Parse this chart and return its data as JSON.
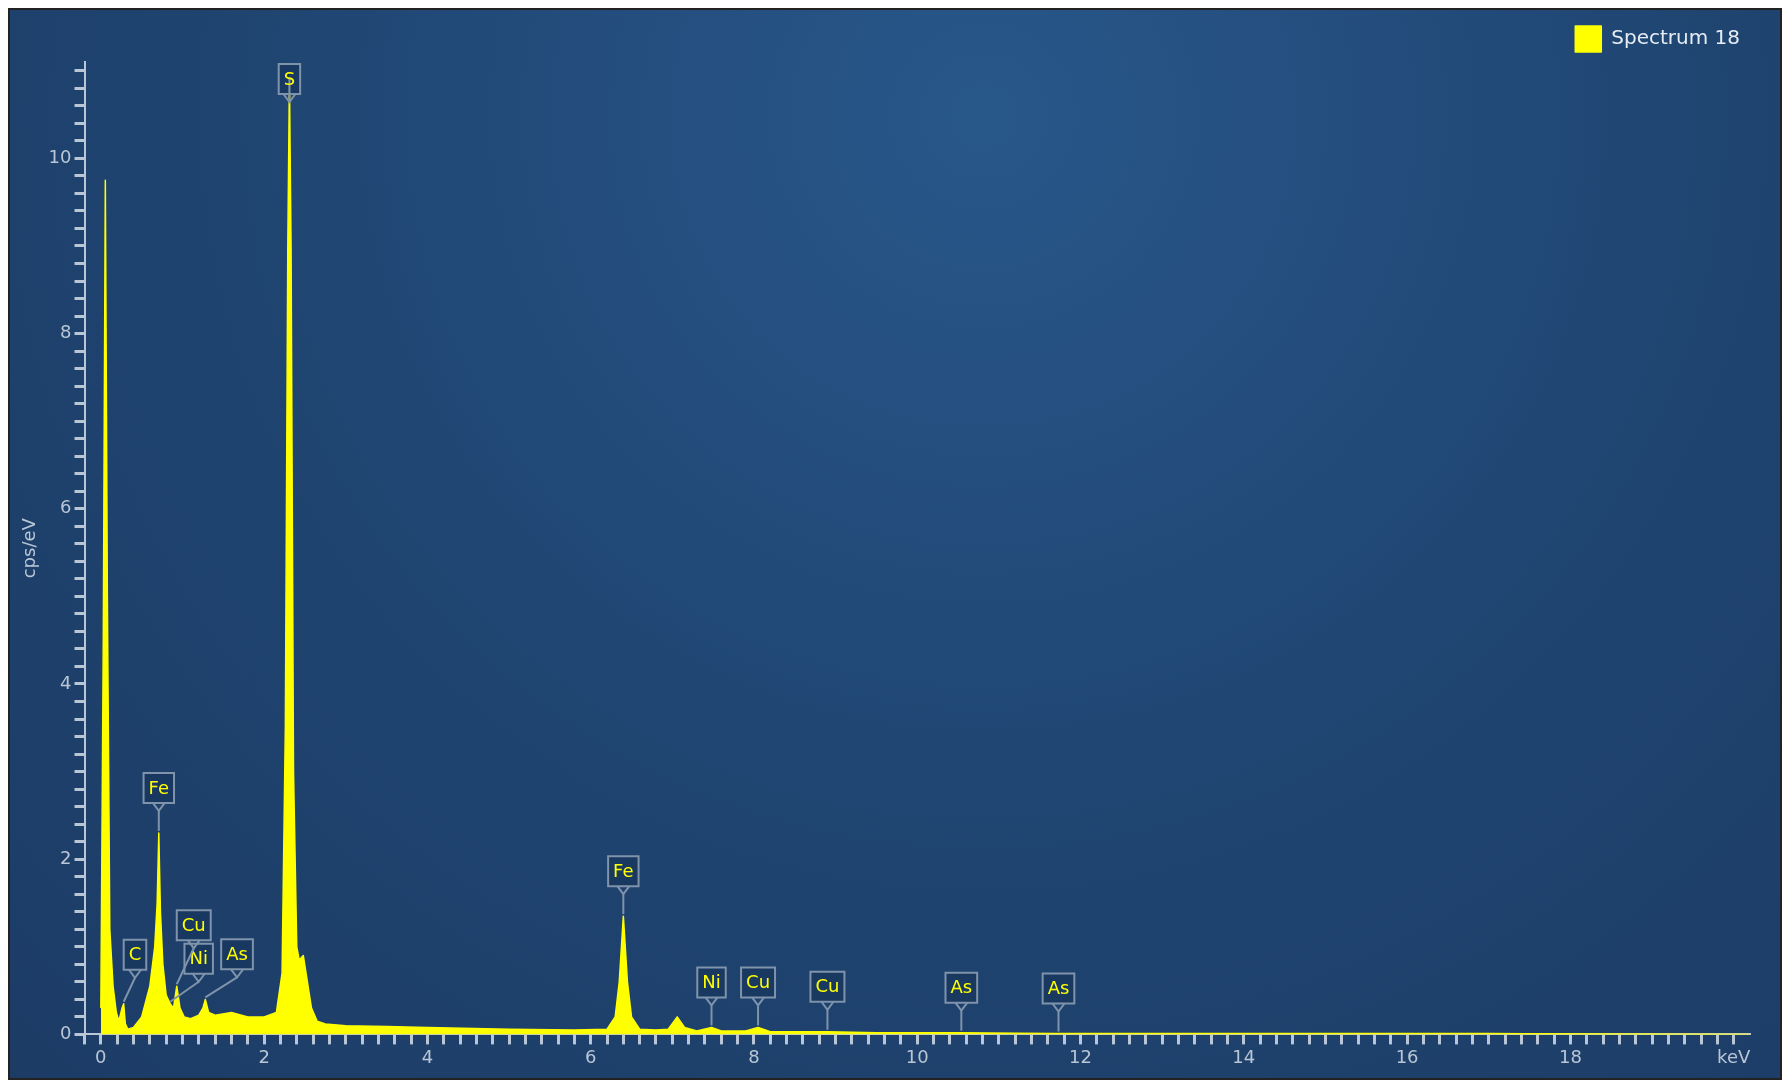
{
  "chart_data": {
    "type": "area",
    "ylabel": "cps/eV",
    "legend": "top right",
    "grid": false,
    "marker": "none",
    "xlim": [
      -0.2,
      20.2
    ],
    "ylim": [
      0,
      11.1
    ],
    "x": [
      0,
      0.03,
      0.055,
      0.08,
      0.11,
      0.15,
      0.19,
      0.22,
      0.26,
      0.28,
      0.3,
      0.33,
      0.4,
      0.5,
      0.6,
      0.66,
      0.69,
      0.71,
      0.73,
      0.76,
      0.8,
      0.85,
      0.89,
      0.93,
      0.97,
      1.02,
      1.1,
      1.2,
      1.25,
      1.28,
      1.32,
      1.4,
      1.6,
      1.8,
      2.0,
      2.15,
      2.22,
      2.26,
      2.29,
      2.31,
      2.33,
      2.36,
      2.4,
      2.43,
      2.48,
      2.53,
      2.58,
      2.65,
      2.75,
      3.0,
      3.5,
      4.0,
      5.0,
      5.8,
      6.2,
      6.3,
      6.35,
      6.4,
      6.45,
      6.5,
      6.6,
      6.8,
      6.95,
      7.06,
      7.15,
      7.3,
      7.48,
      7.6,
      7.9,
      8.05,
      8.2,
      8.9,
      9.5,
      10.5,
      11.7,
      13,
      15,
      17,
      20.2
    ],
    "series": [
      {
        "name": "Spectrum 18",
        "color": "#ffff00",
        "values": [
          0.3,
          4.5,
          9.75,
          5.0,
          1.2,
          0.55,
          0.25,
          0.15,
          0.3,
          0.35,
          0.12,
          0.06,
          0.08,
          0.2,
          0.55,
          1.0,
          1.5,
          2.3,
          1.4,
          0.8,
          0.45,
          0.35,
          0.3,
          0.55,
          0.3,
          0.2,
          0.18,
          0.22,
          0.3,
          0.4,
          0.25,
          0.22,
          0.25,
          0.2,
          0.2,
          0.25,
          0.7,
          3.5,
          9.0,
          10.9,
          9.0,
          3.0,
          1.0,
          0.85,
          0.9,
          0.6,
          0.3,
          0.15,
          0.12,
          0.1,
          0.09,
          0.08,
          0.06,
          0.05,
          0.06,
          0.2,
          0.6,
          1.35,
          0.6,
          0.2,
          0.06,
          0.05,
          0.06,
          0.2,
          0.08,
          0.04,
          0.08,
          0.04,
          0.04,
          0.08,
          0.03,
          0.03,
          0.02,
          0.02,
          0.01,
          0.01,
          0.01,
          0.01,
          0
        ]
      }
    ],
    "annotations": [
      {
        "text": "C",
        "x": 0.28,
        "y": 0.35
      },
      {
        "text": "Fe",
        "x": 0.71,
        "y": 2.3
      },
      {
        "text": "Ni",
        "x": 0.85,
        "y": 0.35
      },
      {
        "text": "Cu",
        "x": 0.93,
        "y": 0.55
      },
      {
        "text": "As",
        "x": 1.28,
        "y": 0.4
      },
      {
        "text": "S",
        "x": 2.31,
        "y": 10.9
      },
      {
        "text": "Fe",
        "x": 6.4,
        "y": 1.35
      },
      {
        "text": "Ni",
        "x": 7.48,
        "y": 0.08
      },
      {
        "text": "Cu",
        "x": 8.05,
        "y": 0.08
      },
      {
        "text": "Cu",
        "x": 8.9,
        "y": 0.03
      },
      {
        "text": "As",
        "x": 10.54,
        "y": 0.02
      },
      {
        "text": "As",
        "x": 11.73,
        "y": 0.01
      }
    ],
    "yticks": [
      0,
      {
        "value": 0.2,
        "label": null
      },
      {
        "value": 0.4,
        "label": null
      },
      {
        "value": 0.6,
        "label": null
      },
      {
        "value": 0.8,
        "label": null
      },
      {
        "value": 1,
        "label": null
      },
      {
        "value": 1.2,
        "label": null
      },
      {
        "value": 1.4,
        "label": null
      },
      {
        "value": 1.6,
        "label": null
      },
      {
        "value": 1.8,
        "label": null
      },
      2,
      {
        "value": 2.2,
        "label": null
      },
      {
        "value": 2.4,
        "label": null
      },
      {
        "value": 2.6,
        "label": null
      },
      {
        "value": 2.8,
        "label": null
      },
      {
        "value": 3,
        "label": null
      },
      {
        "value": 3.2,
        "label": null
      },
      {
        "value": 3.4,
        "label": null
      },
      {
        "value": 3.6,
        "label": null
      },
      {
        "value": 3.8,
        "label": null
      },
      4,
      {
        "value": 4.2,
        "label": null
      },
      {
        "value": 4.4,
        "label": null
      },
      {
        "value": 4.6,
        "label": null
      },
      {
        "value": 4.8,
        "label": null
      },
      {
        "value": 5,
        "label": null
      },
      {
        "value": 5.2,
        "label": null
      },
      {
        "value": 5.4,
        "label": null
      },
      {
        "value": 5.6,
        "label": null
      },
      {
        "value": 5.8,
        "label": null
      },
      6,
      {
        "value": 6.2,
        "label": null
      },
      {
        "value": 6.4,
        "label": null
      },
      {
        "value": 6.6,
        "label": null
      },
      {
        "value": 6.8,
        "label": null
      },
      {
        "value": 7,
        "label": null
      },
      {
        "value": 7.2,
        "label": null
      },
      {
        "value": 7.4,
        "label": null
      },
      {
        "value": 7.6,
        "label": null
      },
      {
        "value": 7.8,
        "label": null
      },
      8,
      {
        "value": 8.2,
        "label": null
      },
      {
        "value": 8.4,
        "label": null
      },
      {
        "value": 8.6,
        "label": null
      },
      {
        "value": 8.8,
        "label": null
      },
      {
        "value": 9,
        "label": null
      },
      {
        "value": 9.2,
        "label": null
      },
      {
        "value": 9.4,
        "label": null
      },
      {
        "value": 9.6,
        "label": null
      },
      {
        "value": 9.8,
        "label": null
      },
      10,
      {
        "value": 10.2,
        "label": null
      },
      {
        "value": 10.4,
        "label": null
      },
      {
        "value": 10.6,
        "label": null
      },
      {
        "value": 10.8,
        "label": null
      },
      {
        "value": 11,
        "label": null
      }
    ],
    "xticks": [
      {
        "value": -0.2,
        "label": null
      },
      0,
      {
        "value": 0.2,
        "label": null
      },
      {
        "value": 0.4,
        "label": null
      },
      {
        "value": 0.6,
        "label": null
      },
      {
        "value": 0.8,
        "label": null
      },
      {
        "value": 1,
        "label": null
      },
      {
        "value": 1.2,
        "label": null
      },
      {
        "value": 1.4,
        "label": null
      },
      {
        "value": 1.6,
        "label": null
      },
      {
        "value": 1.8,
        "label": null
      },
      2,
      {
        "value": 2.2,
        "label": null
      },
      {
        "value": 2.4,
        "label": null
      },
      {
        "value": 2.6,
        "label": null
      },
      {
        "value": 2.8,
        "label": null
      },
      {
        "value": 3,
        "label": null
      },
      {
        "value": 3.2,
        "label": null
      },
      {
        "value": 3.4,
        "label": null
      },
      {
        "value": 3.6,
        "label": null
      },
      {
        "value": 3.8,
        "label": null
      },
      4,
      {
        "value": 4.2,
        "label": null
      },
      {
        "value": 4.4,
        "label": null
      },
      {
        "value": 4.6,
        "label": null
      },
      {
        "value": 4.8,
        "label": null
      },
      {
        "value": 5,
        "label": null
      },
      {
        "value": 5.2,
        "label": null
      },
      {
        "value": 5.4,
        "label": null
      },
      {
        "value": 5.6,
        "label": null
      },
      {
        "value": 5.8,
        "label": null
      },
      6,
      {
        "value": 6.2,
        "label": null
      },
      {
        "value": 6.4,
        "label": null
      },
      {
        "value": 6.6,
        "label": null
      },
      {
        "value": 6.8,
        "label": null
      },
      {
        "value": 7,
        "label": null
      },
      {
        "value": 7.2,
        "label": null
      },
      {
        "value": 7.4,
        "label": null
      },
      {
        "value": 7.6,
        "label": null
      },
      {
        "value": 7.8,
        "label": null
      },
      8,
      {
        "value": 8.2,
        "label": null
      },
      {
        "value": 8.4,
        "label": null
      },
      {
        "value": 8.6,
        "label": null
      },
      {
        "value": 8.8,
        "label": null
      },
      {
        "value": 9,
        "label": null
      },
      {
        "value": 9.2,
        "label": null
      },
      {
        "value": 9.4,
        "label": null
      },
      {
        "value": 9.6,
        "label": null
      },
      {
        "value": 9.8,
        "label": null
      },
      10,
      {
        "value": 10.2,
        "label": null
      },
      {
        "value": 10.4,
        "label": null
      },
      {
        "value": 10.6,
        "label": null
      },
      {
        "value": 10.8,
        "label": null
      },
      {
        "value": 11,
        "label": null
      },
      {
        "value": 11.2,
        "label": null
      },
      {
        "value": 11.4,
        "label": null
      },
      {
        "value": 11.6,
        "label": null
      },
      {
        "value": 11.8,
        "label": null
      },
      12,
      {
        "value": 12.2,
        "label": null
      },
      {
        "value": 12.4,
        "label": null
      },
      {
        "value": 12.6,
        "label": null
      },
      {
        "value": 12.8,
        "label": null
      },
      {
        "value": 13,
        "label": null
      },
      {
        "value": 13.2,
        "label": null
      },
      {
        "value": 13.4,
        "label": null
      },
      {
        "value": 13.6,
        "label": null
      },
      {
        "value": 13.8,
        "label": null
      },
      14,
      {
        "value": 14.2,
        "label": null
      },
      {
        "value": 14.4,
        "label": null
      },
      {
        "value": 14.6,
        "label": null
      },
      {
        "value": 14.8,
        "label": null
      },
      {
        "value": 15,
        "label": null
      },
      {
        "value": 15.2,
        "label": null
      },
      {
        "value": 15.4,
        "label": null
      },
      {
        "value": 15.6,
        "label": null
      },
      {
        "value": 15.8,
        "label": null
      },
      16,
      {
        "value": 16.2,
        "label": null
      },
      {
        "value": 16.4,
        "label": null
      },
      {
        "value": 16.6,
        "label": null
      },
      {
        "value": 16.8,
        "label": null
      },
      {
        "value": 17,
        "label": null
      },
      {
        "value": 17.2,
        "label": null
      },
      {
        "value": 17.4,
        "label": null
      },
      {
        "value": 17.6,
        "label": null
      },
      {
        "value": 17.8,
        "label": null
      },
      18,
      {
        "value": 18.2,
        "label": null
      },
      {
        "value": 18.4,
        "label": null
      },
      {
        "value": 18.6,
        "label": null
      },
      {
        "value": 18.8,
        "label": null
      },
      {
        "value": 19,
        "label": null
      },
      {
        "value": 19.2,
        "label": null
      },
      {
        "value": 19.4,
        "label": null
      },
      {
        "value": 19.6,
        "label": null
      },
      {
        "value": 19.8,
        "label": null
      },
      {
        "value": 20,
        "label": "keV"
      }
    ]
  }
}
